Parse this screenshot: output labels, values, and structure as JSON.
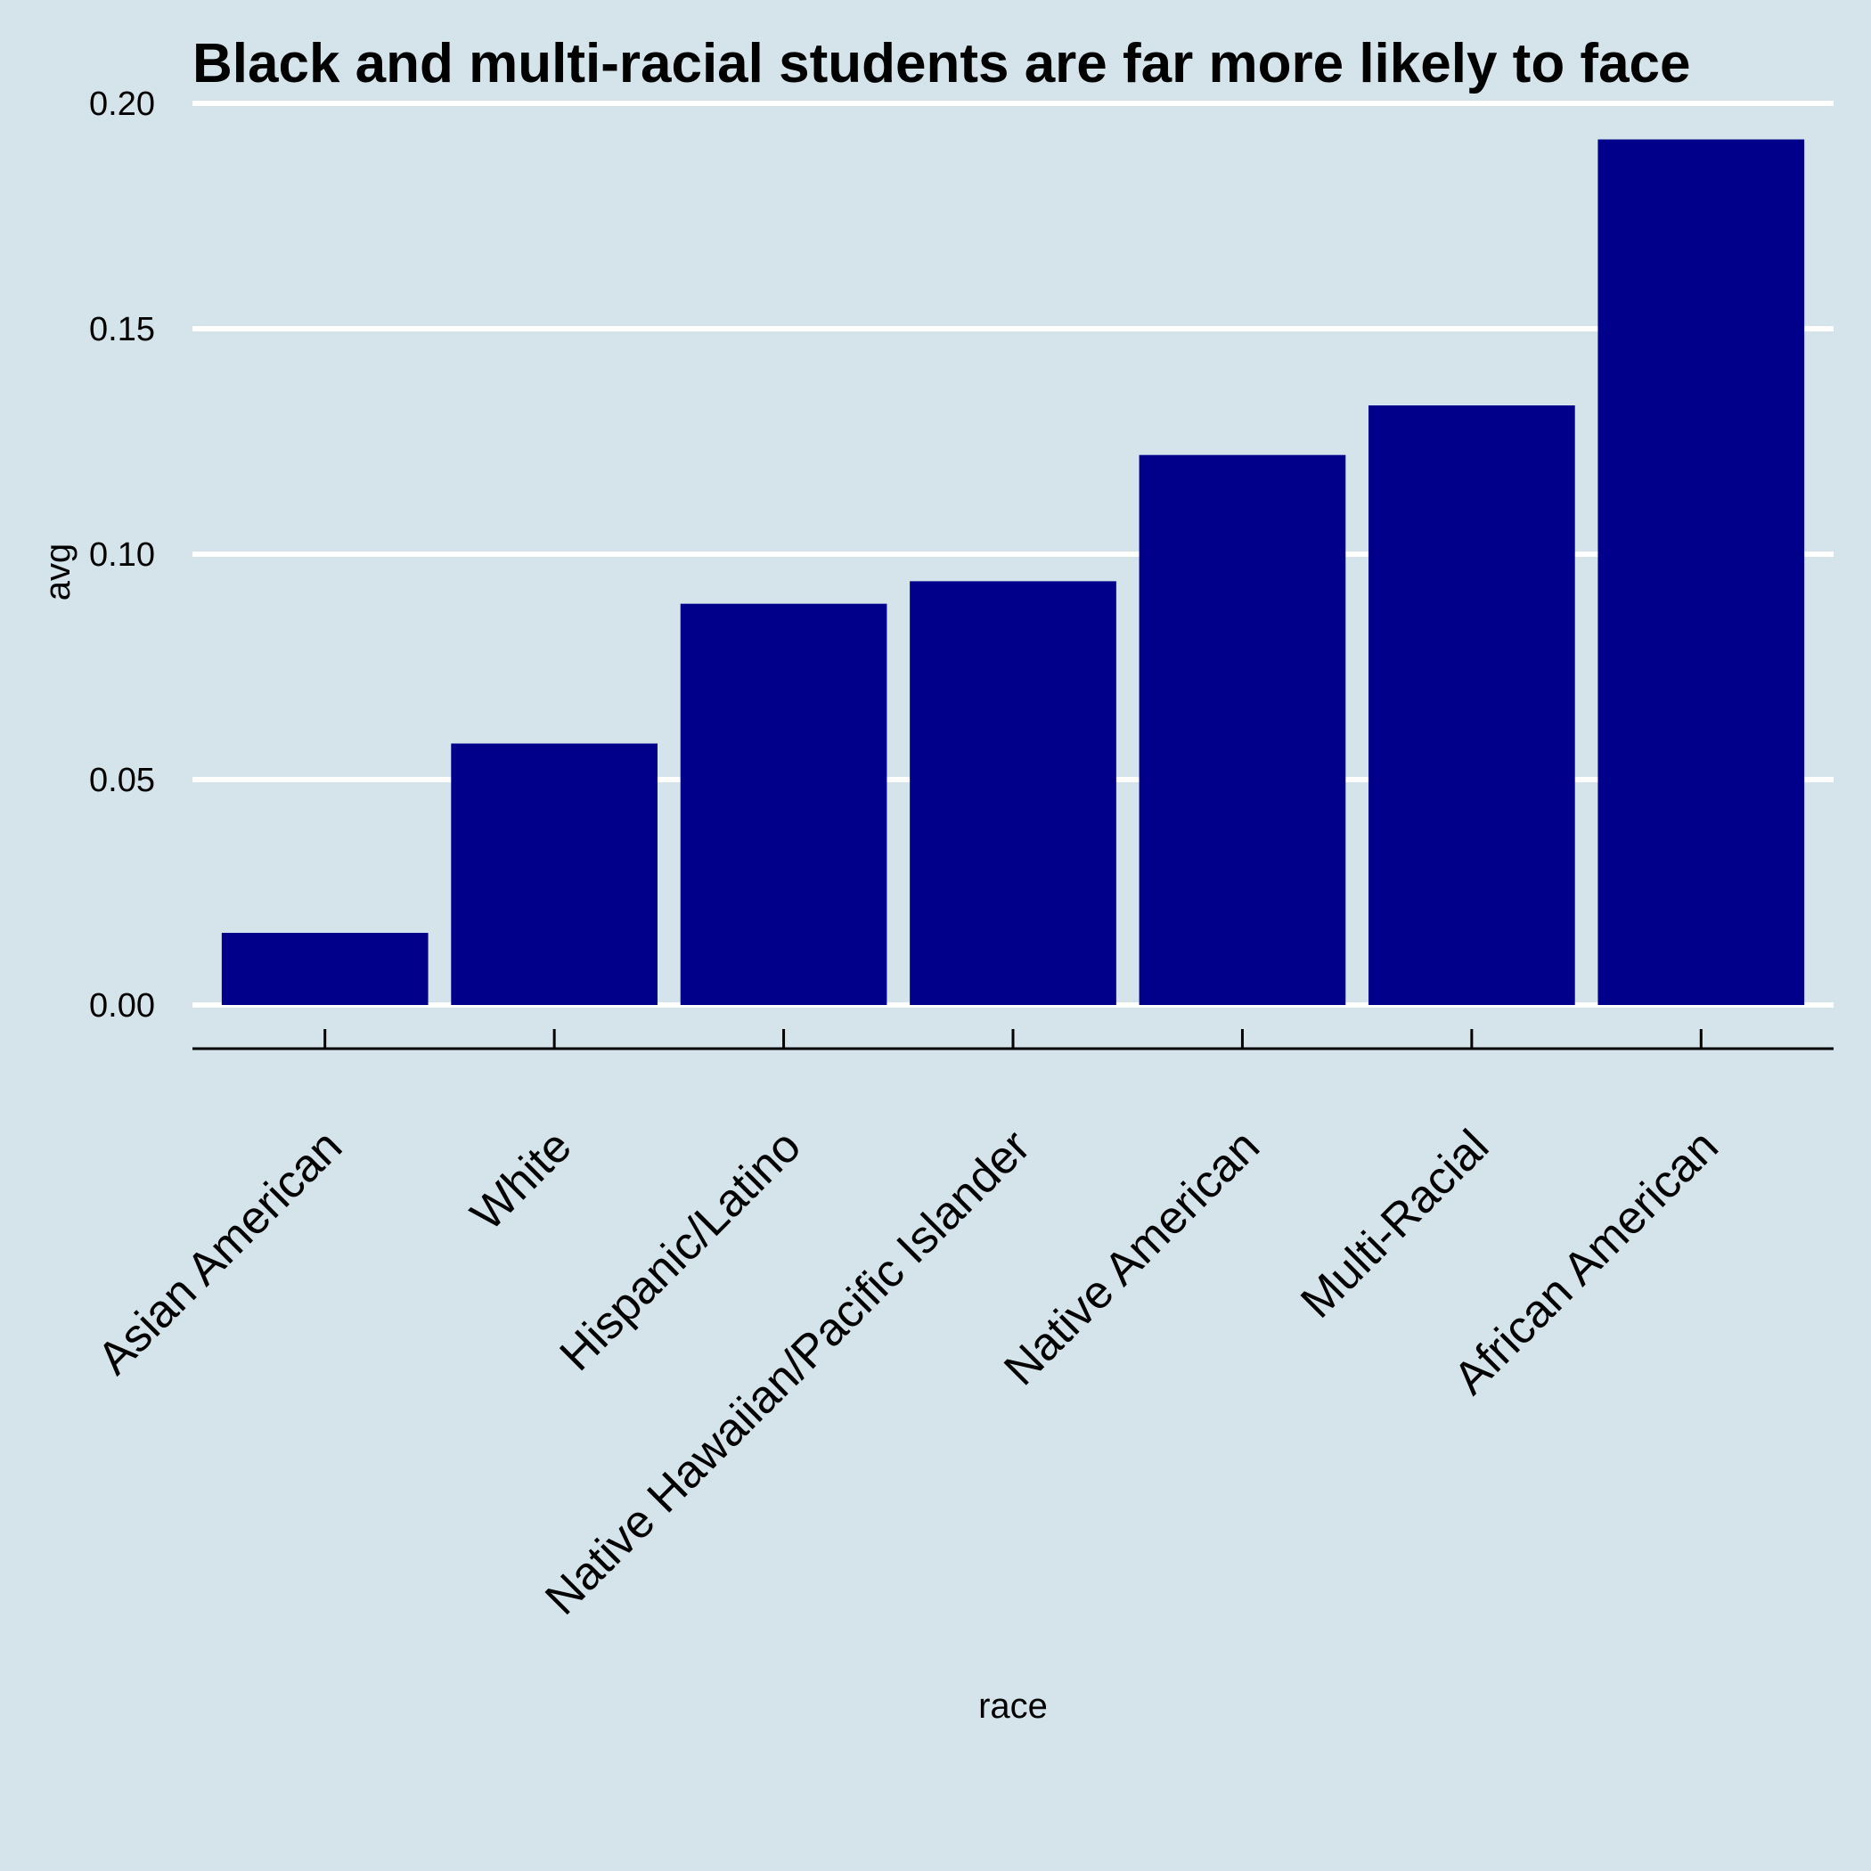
{
  "chart_data": {
    "type": "bar",
    "title": "Black and multi-racial students are far more likely to face",
    "xlabel": "race",
    "ylabel": "avg",
    "categories": [
      "Asian American",
      "White",
      "Hispanic/Latino",
      "Native Hawaiian/Pacific Islander",
      "Native American",
      "Multi-Racial",
      "African American"
    ],
    "values": [
      0.016,
      0.058,
      0.089,
      0.094,
      0.122,
      0.133,
      0.192
    ],
    "ylim": [
      0,
      0.2
    ],
    "yticks": [
      "0.00",
      "0.05",
      "0.10",
      "0.15",
      "0.20"
    ],
    "grid": "horizontal",
    "legend": "none"
  },
  "colors": {
    "background": "#d5e4eb",
    "bar": "#00008b",
    "grid": "#ffffff",
    "axis": "#000000"
  }
}
